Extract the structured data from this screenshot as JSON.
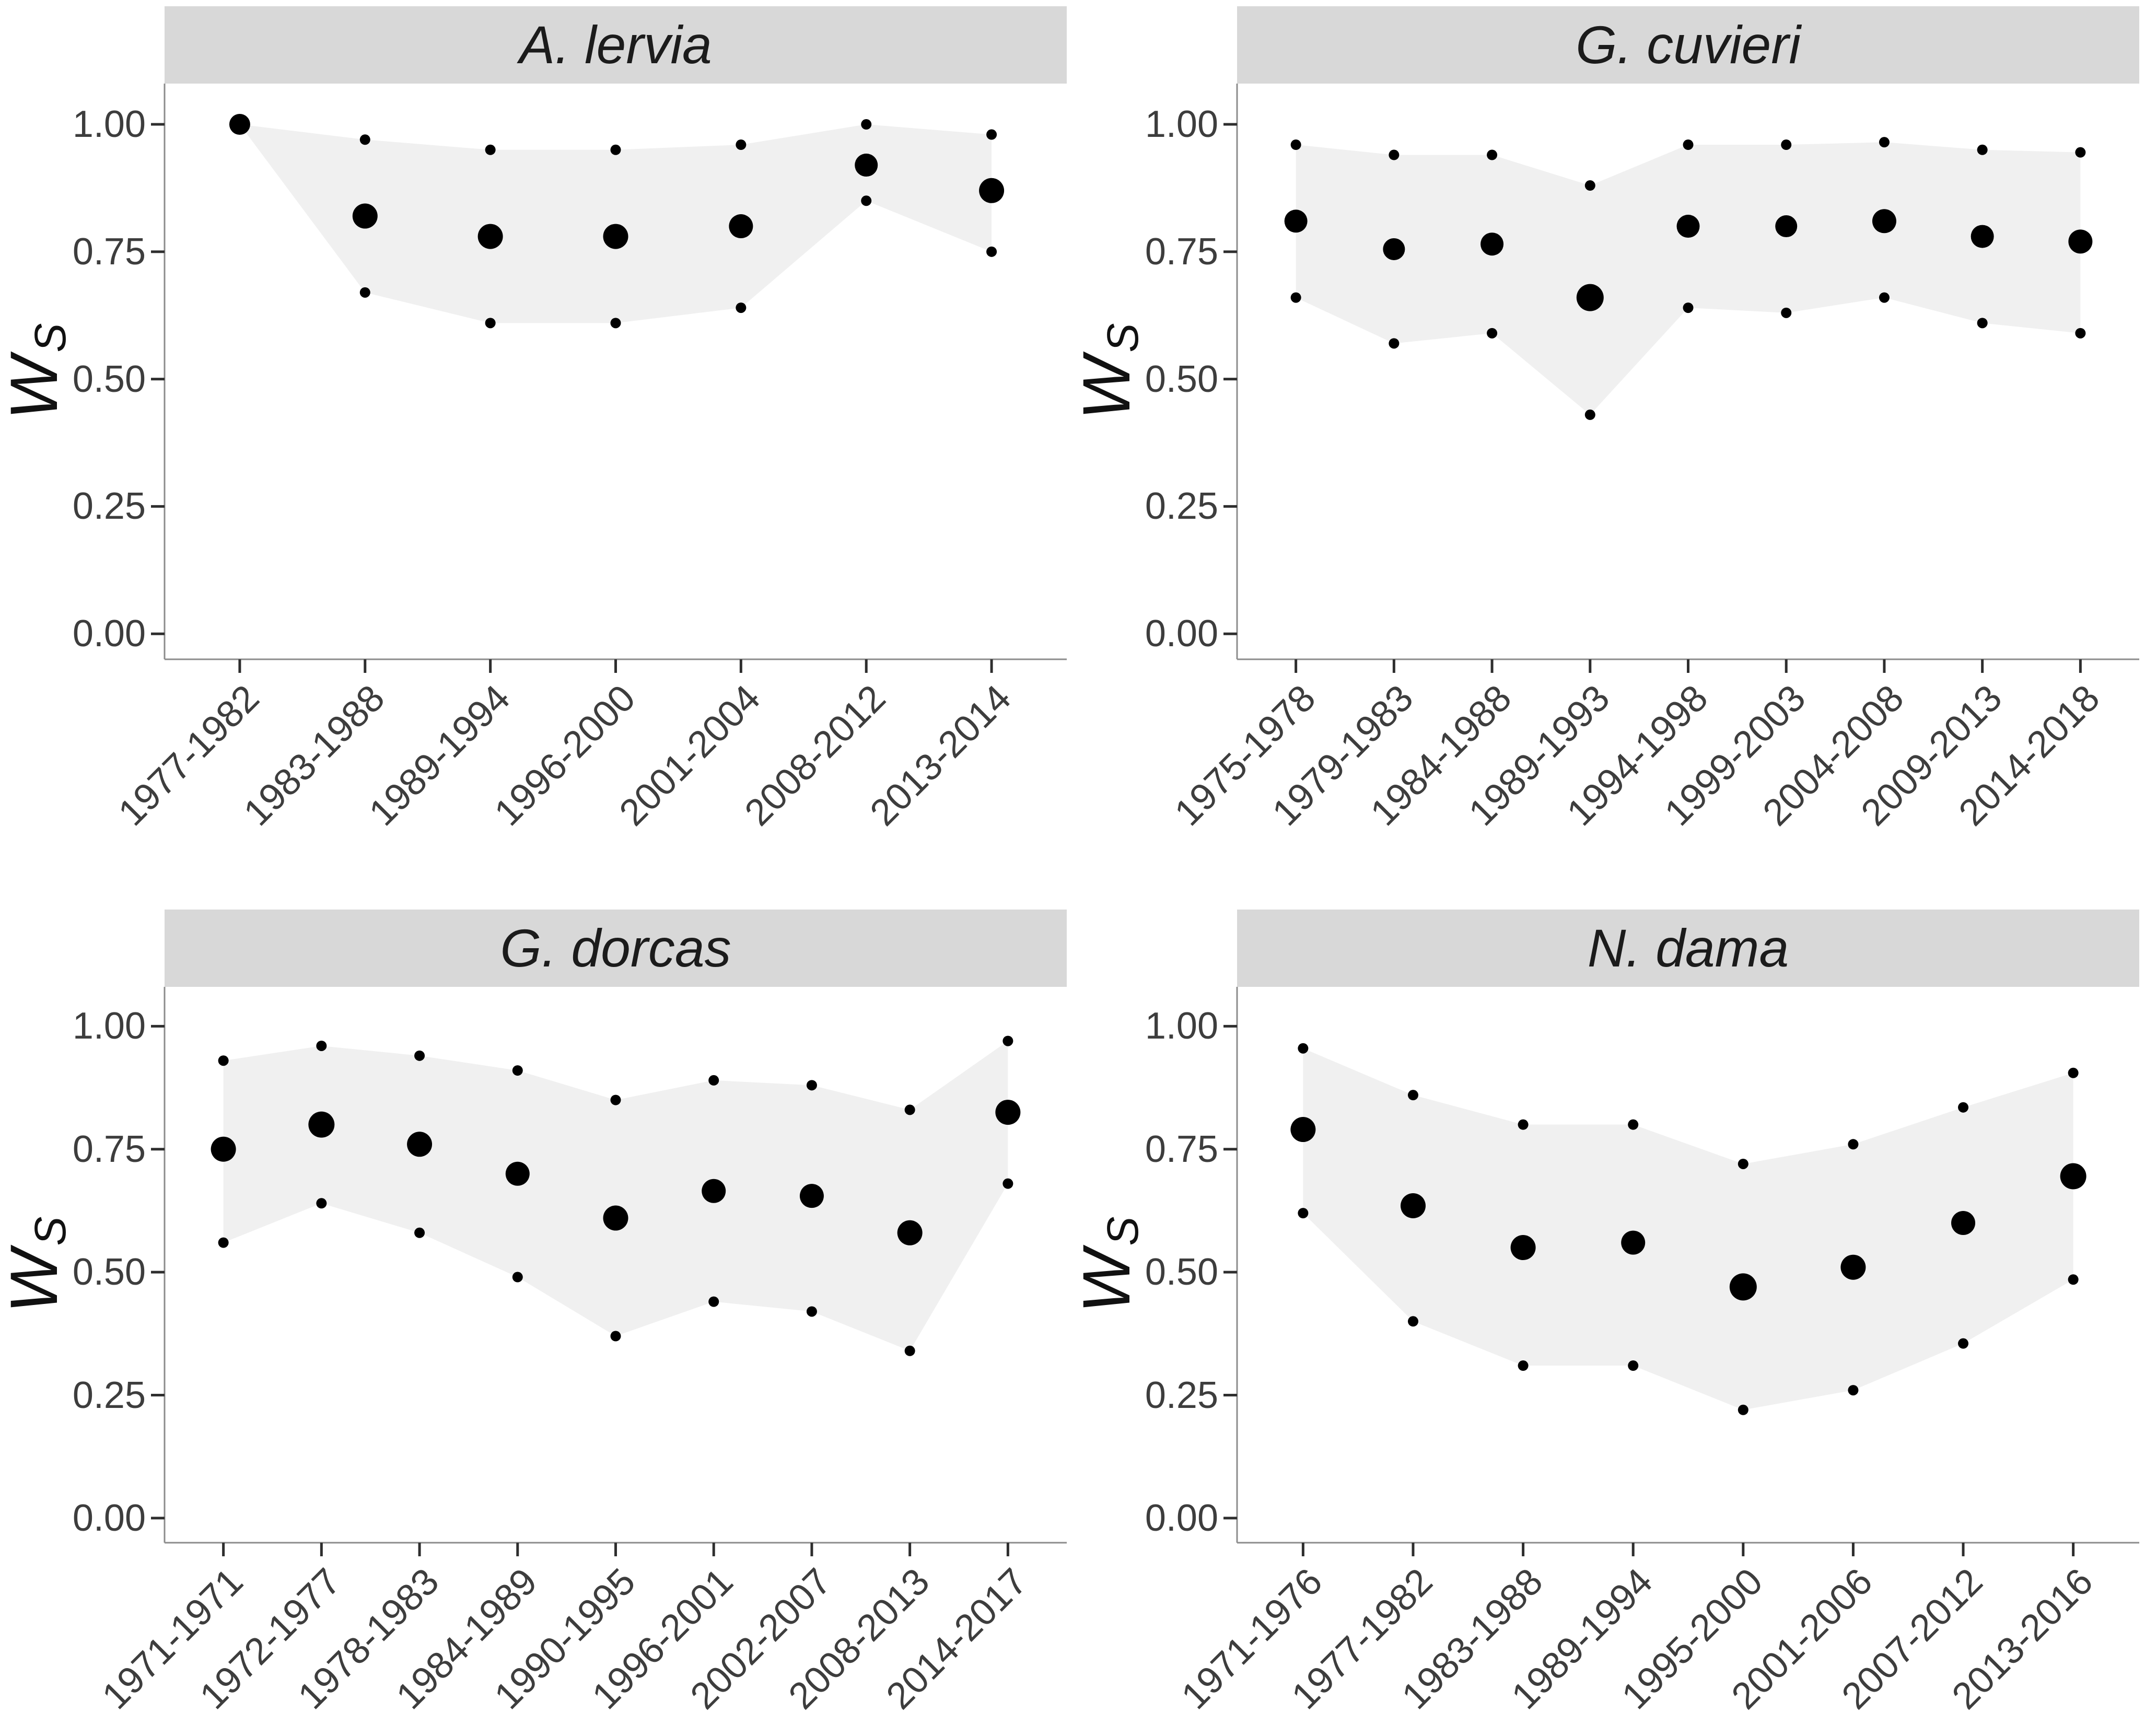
{
  "figure": {
    "background": "#ffffff",
    "panel_background": "#ffffff",
    "strip_background": "#d8d8d8",
    "strip_text_color": "#1b1b1b",
    "ribbon_color": "#f0f0f0",
    "point_color": "#000000",
    "axis_text_color": "#3d3d3d",
    "axis_line_color": "#8c8c8c",
    "tick_mark_color": "#2e2e2e",
    "y_axis_title": {
      "base": "W",
      "subscript": "S"
    },
    "y_ticks": [
      {
        "value": 1.0,
        "label": "1.00"
      },
      {
        "value": 0.75,
        "label": "0.75"
      },
      {
        "value": 0.5,
        "label": "0.50"
      },
      {
        "value": 0.25,
        "label": "0.25"
      },
      {
        "value": 0.0,
        "label": "0.00"
      }
    ]
  },
  "chart_data": [
    {
      "type": "area",
      "title": "A. lervia",
      "xlabel": "",
      "ylabel": "Ws",
      "ylim": [
        0,
        1.05
      ],
      "grid": false,
      "legend": "none",
      "categories": [
        "1977-1982",
        "1983-1988",
        "1989-1994",
        "1996-2000",
        "2001-2004",
        "2008-2012",
        "2013-2014"
      ],
      "series": [
        {
          "name": "mean",
          "values": [
            1.0,
            0.82,
            0.78,
            0.78,
            0.8,
            0.92,
            0.87
          ]
        },
        {
          "name": "upper",
          "values": [
            1.0,
            0.97,
            0.95,
            0.95,
            0.96,
            1.0,
            0.98
          ]
        },
        {
          "name": "lower",
          "values": [
            1.0,
            0.67,
            0.61,
            0.61,
            0.64,
            0.85,
            0.75
          ]
        }
      ],
      "mean_point_radii": [
        20,
        24,
        24,
        24,
        23,
        22,
        24
      ],
      "bound_point_radius": 10
    },
    {
      "type": "area",
      "title": "G. cuvieri",
      "xlabel": "",
      "ylabel": "Ws",
      "ylim": [
        0,
        1.05
      ],
      "grid": false,
      "legend": "none",
      "categories": [
        "1975-1978",
        "1979-1983",
        "1984-1988",
        "1989-1993",
        "1994-1998",
        "1999-2003",
        "2004-2008",
        "2009-2013",
        "2014-2018"
      ],
      "series": [
        {
          "name": "mean",
          "values": [
            0.81,
            0.755,
            0.765,
            0.66,
            0.8,
            0.8,
            0.81,
            0.78,
            0.77
          ]
        },
        {
          "name": "upper",
          "values": [
            0.96,
            0.94,
            0.94,
            0.88,
            0.96,
            0.96,
            0.965,
            0.95,
            0.945
          ]
        },
        {
          "name": "lower",
          "values": [
            0.66,
            0.57,
            0.59,
            0.43,
            0.64,
            0.63,
            0.66,
            0.61,
            0.59
          ]
        }
      ],
      "mean_point_radii": [
        22,
        21,
        22,
        26,
        22,
        21,
        23,
        22,
        23
      ],
      "bound_point_radius": 10
    },
    {
      "type": "area",
      "title": "G. dorcas",
      "xlabel": "",
      "ylabel": "Ws",
      "ylim": [
        0,
        1.05
      ],
      "grid": false,
      "legend": "none",
      "categories": [
        "1971-1971",
        "1972-1977",
        "1978-1983",
        "1984-1989",
        "1990-1995",
        "1996-2001",
        "2002-2007",
        "2008-2013",
        "2014-2017"
      ],
      "series": [
        {
          "name": "mean",
          "values": [
            0.75,
            0.8,
            0.76,
            0.7,
            0.61,
            0.665,
            0.655,
            0.58,
            0.825
          ]
        },
        {
          "name": "upper",
          "values": [
            0.93,
            0.96,
            0.94,
            0.91,
            0.85,
            0.89,
            0.88,
            0.83,
            0.97
          ]
        },
        {
          "name": "lower",
          "values": [
            0.56,
            0.64,
            0.58,
            0.49,
            0.37,
            0.44,
            0.42,
            0.34,
            0.68
          ]
        }
      ],
      "mean_point_radii": [
        24,
        25,
        24,
        23,
        24,
        23,
        23,
        24,
        24
      ],
      "bound_point_radius": 10
    },
    {
      "type": "area",
      "title": "N. dama",
      "xlabel": "",
      "ylabel": "Ws",
      "ylim": [
        0,
        1.05
      ],
      "grid": false,
      "legend": "none",
      "categories": [
        "1971-1976",
        "1977-1982",
        "1983-1988",
        "1989-1994",
        "1995-2000",
        "2001-2006",
        "2007-2012",
        "2013-2016"
      ],
      "series": [
        {
          "name": "mean",
          "values": [
            0.79,
            0.635,
            0.55,
            0.56,
            0.47,
            0.51,
            0.6,
            0.695
          ]
        },
        {
          "name": "upper",
          "values": [
            0.955,
            0.86,
            0.8,
            0.8,
            0.72,
            0.76,
            0.835,
            0.905
          ]
        },
        {
          "name": "lower",
          "values": [
            0.62,
            0.4,
            0.31,
            0.31,
            0.22,
            0.26,
            0.355,
            0.485
          ]
        }
      ],
      "mean_point_radii": [
        24,
        24,
        24,
        23,
        26,
        24,
        23,
        25
      ],
      "bound_point_radius": 10
    }
  ]
}
